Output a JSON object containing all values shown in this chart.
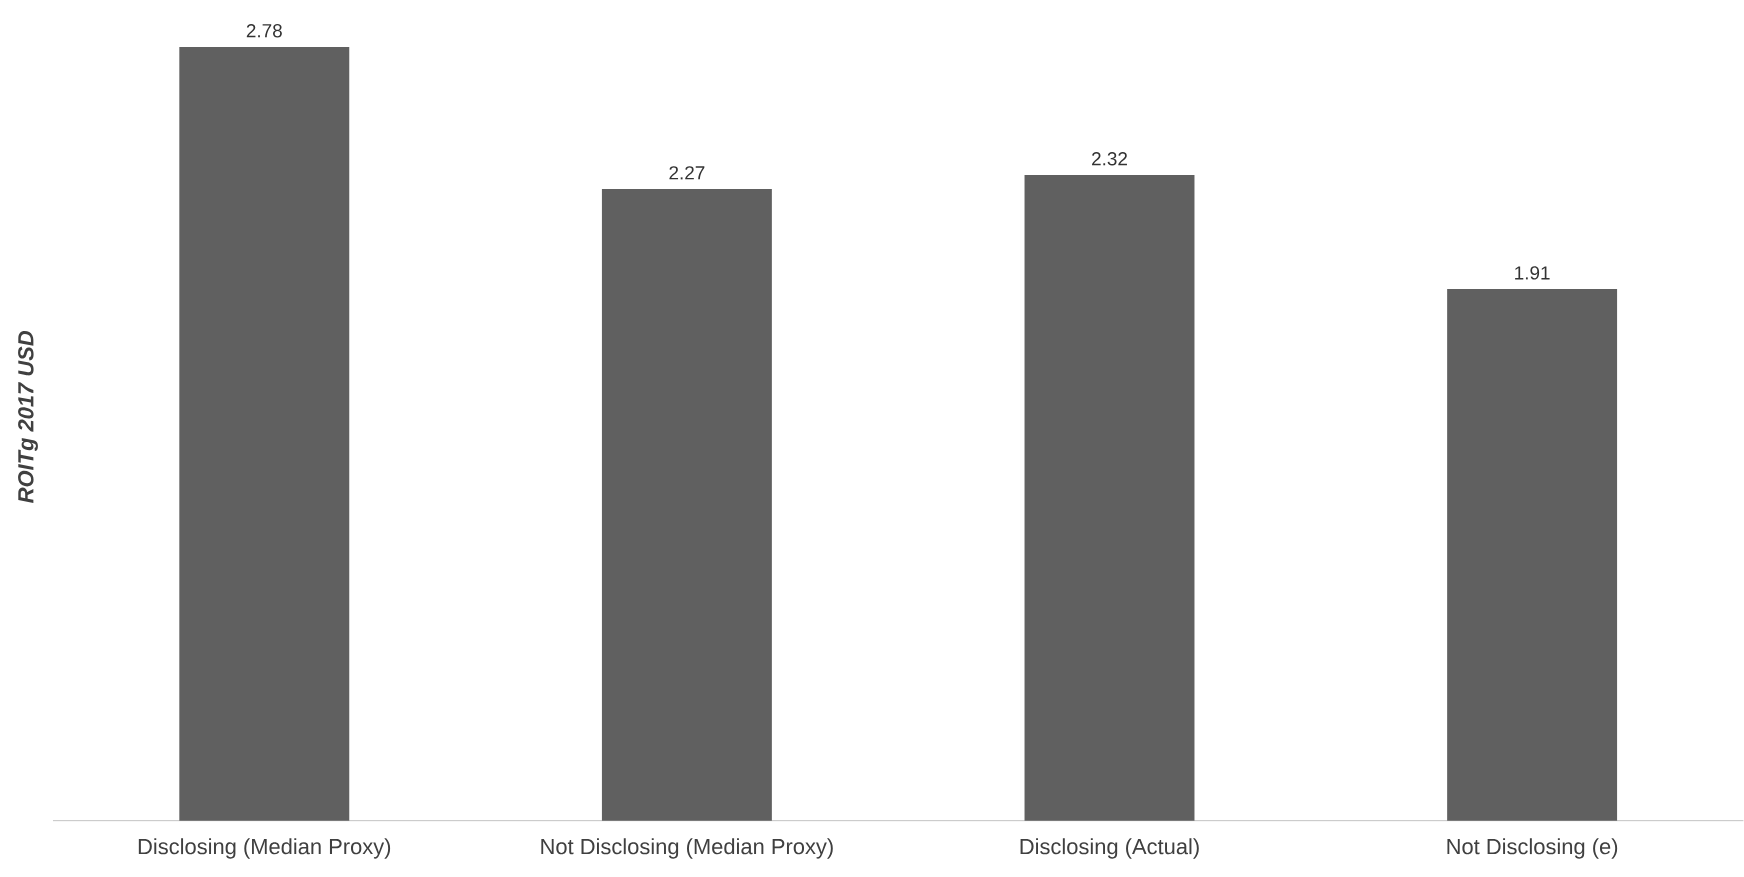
{
  "chart_data": {
    "type": "bar",
    "ylabel": "ROITg 2017 USD",
    "categories": [
      "Disclosing (Median Proxy)",
      "Not Disclosing (Median Proxy)",
      "Disclosing (Actual)",
      "Not Disclosing (e)"
    ],
    "values": [
      2.78,
      2.27,
      2.32,
      1.91
    ],
    "color": "#606060",
    "data_labels": true
  }
}
